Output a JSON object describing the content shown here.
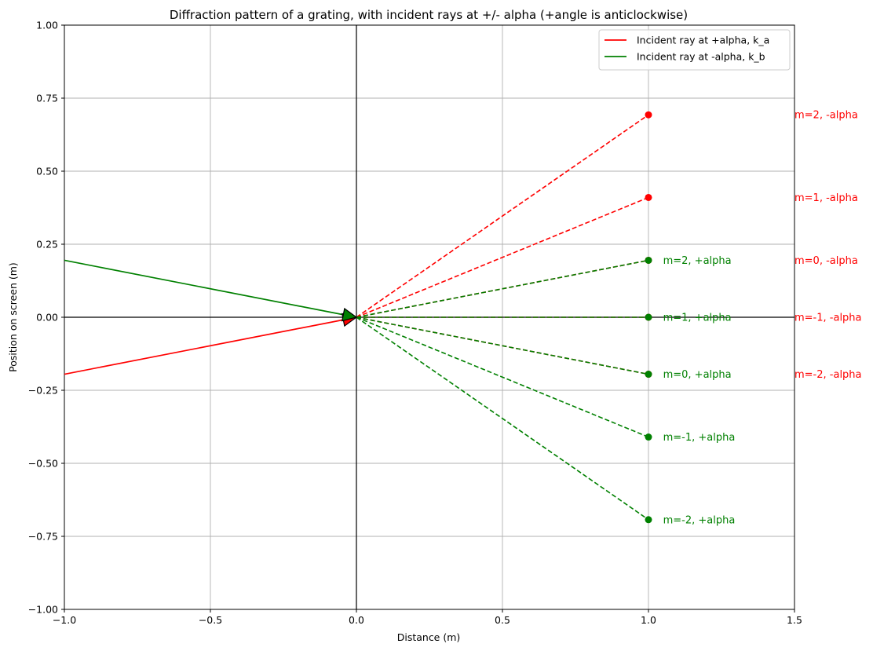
{
  "chart_data": {
    "type": "line",
    "title": "Diffraction pattern of a grating, with incident rays at +/- alpha (+angle is anticlockwise)",
    "xlabel": "Distance (m)",
    "ylabel": "Position on screen (m)",
    "xlim": [
      -1.0,
      1.5
    ],
    "ylim": [
      -1.0,
      1.0
    ],
    "xticks": [
      -1.0,
      -0.5,
      0.0,
      0.5,
      1.0,
      1.5
    ],
    "xtick_labels": [
      "−1.0",
      "−0.5",
      "0.0",
      "0.5",
      "1.0",
      "1.5"
    ],
    "yticks": [
      -1.0,
      -0.75,
      -0.5,
      -0.25,
      0.0,
      0.25,
      0.5,
      0.75,
      1.0
    ],
    "ytick_labels": [
      "−1.00",
      "−0.75",
      "−0.50",
      "−0.25",
      "0.00",
      "0.25",
      "0.50",
      "0.75",
      "1.00"
    ],
    "grid": true,
    "legend_position": "top-right",
    "colors": {
      "red": "#ff0000",
      "green": "#008000"
    },
    "series": [
      {
        "name": "Incident ray at +alpha, k_a",
        "color": "#ff0000",
        "x": [
          -1.0,
          0.0
        ],
        "y": [
          -0.195,
          0.0
        ]
      },
      {
        "name": "Incident ray at -alpha, k_b",
        "color": "#008000",
        "x": [
          -1.0,
          0.0
        ],
        "y": [
          0.195,
          0.0
        ]
      }
    ],
    "diffracted": {
      "red": [
        {
          "m": 2,
          "y": 0.693,
          "label": "m=2, -alpha"
        },
        {
          "m": 1,
          "y": 0.41,
          "label": "m=1, -alpha"
        },
        {
          "m": 0,
          "y": 0.195,
          "label": "m=0, -alpha"
        },
        {
          "m": -1,
          "y": 0.0,
          "label": "m=-1, -alpha"
        },
        {
          "m": -2,
          "y": -0.195,
          "label": "m=-2, -alpha"
        }
      ],
      "green": [
        {
          "m": 2,
          "y": 0.195,
          "label": "m=2, +alpha"
        },
        {
          "m": 1,
          "y": 0.0,
          "label": "m=1, +alpha"
        },
        {
          "m": 0,
          "y": -0.195,
          "label": "m=0, +alpha"
        },
        {
          "m": -1,
          "y": -0.41,
          "label": "m=-1, +alpha"
        },
        {
          "m": -2,
          "y": -0.693,
          "label": "m=-2, +alpha"
        }
      ],
      "screen_x": 1.0,
      "red_label_x": 1.5,
      "green_label_x": 1.05
    }
  }
}
